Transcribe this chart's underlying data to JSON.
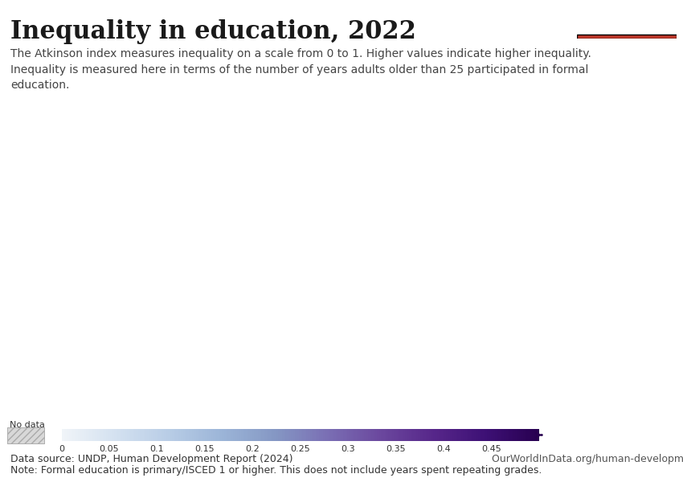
{
  "title": "Inequality in education, 2022",
  "subtitle": "The Atkinson index measures inequality on a scale from 0 to 1. Higher values indicate higher inequality.\nInequality is measured here in terms of the number of years adults older than 25 participated in formal\neducation.",
  "datasource": "Data source: UNDP, Human Development Report (2024)",
  "url": "OurWorldInData.org/human-development-index | CC BY",
  "note": "Note: Formal education is primary/ISCED 1 or higher. This does not include years spent repeating grades.",
  "owid_box_color": "#1a3a5c",
  "owid_box_accent": "#c0392b",
  "colorbar_min": 0,
  "colorbar_max": 0.5,
  "colorbar_ticks": [
    0,
    0.05,
    0.1,
    0.15,
    0.2,
    0.25,
    0.3,
    0.35,
    0.4,
    0.45
  ],
  "no_data_hatch": true,
  "background_color": "#ffffff",
  "map_edge_color": "#ffffff",
  "map_no_data_color": "#e0e0e0",
  "map_ocean_color": "#f0f4f8",
  "colormap_colors": [
    "#e8eef5",
    "#c5d4e8",
    "#a8bdd8",
    "#8fa5c8",
    "#8080b0",
    "#7060a0",
    "#604090",
    "#500080",
    "#3d0060",
    "#2a0040"
  ],
  "title_fontsize": 22,
  "subtitle_fontsize": 10,
  "source_fontsize": 9,
  "note_fontsize": 9
}
